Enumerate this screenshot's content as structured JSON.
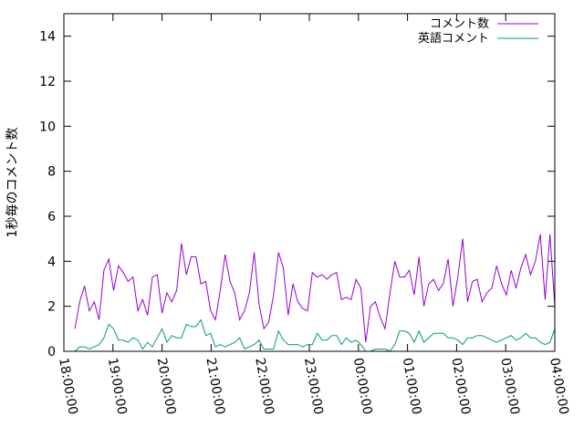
{
  "chart_data": {
    "type": "line",
    "title": "",
    "xlabel": "",
    "ylabel": "1秒毎のコメント数",
    "ylim": [
      0,
      15
    ],
    "yticks": [
      0,
      2,
      4,
      6,
      8,
      10,
      12,
      14
    ],
    "xlim": [
      "18:00:00",
      "04:00:00"
    ],
    "xticks": [
      "18:00:00",
      "19:00:00",
      "20:00:00",
      "21:00:00",
      "22:00:00",
      "23:00:00",
      "00:00:00",
      "01:00:00",
      "02:00:00",
      "03:00:00",
      "04:00:00"
    ],
    "grid": false,
    "legend_position": "top-right",
    "series": [
      {
        "name": "コメント数",
        "color": "#9400d3",
        "values": [
          1.0,
          2.2,
          2.9,
          1.8,
          2.2,
          1.4,
          3.6,
          4.1,
          2.7,
          3.8,
          3.5,
          3.1,
          3.3,
          1.8,
          2.3,
          1.6,
          3.3,
          3.4,
          1.7,
          2.6,
          2.2,
          2.7,
          4.8,
          3.4,
          4.2,
          4.2,
          3.0,
          3.1,
          1.8,
          1.4,
          2.7,
          4.3,
          3.1,
          2.6,
          1.4,
          1.8,
          2.6,
          4.4,
          2.1,
          1.0,
          1.3,
          2.5,
          4.4,
          3.7,
          1.6,
          3.0,
          2.2,
          1.9,
          1.8,
          3.5,
          3.3,
          3.4,
          3.2,
          3.4,
          3.5,
          2.3,
          2.4,
          2.3,
          3.2,
          2.8,
          0.4,
          2.0,
          2.2,
          1.5,
          1.0,
          2.6,
          4.0,
          3.3,
          3.3,
          3.6,
          2.5,
          4.2,
          2.0,
          3.0,
          3.2,
          2.7,
          3.0,
          4.1,
          2.0,
          3.3,
          5.0,
          2.2,
          3.1,
          3.2,
          2.2,
          2.6,
          2.8,
          3.8,
          3.0,
          2.5,
          3.6,
          2.8,
          3.7,
          4.3,
          3.4,
          4.0,
          5.2,
          2.3,
          5.2,
          2.0
        ]
      },
      {
        "name": "英語コメント",
        "color": "#009e73",
        "values": [
          0.0,
          0.2,
          0.2,
          0.1,
          0.2,
          0.3,
          0.6,
          1.2,
          1.0,
          0.5,
          0.5,
          0.4,
          0.6,
          0.5,
          0.1,
          0.4,
          0.2,
          0.6,
          1.0,
          0.4,
          0.7,
          0.6,
          0.6,
          1.2,
          1.1,
          1.1,
          1.4,
          0.7,
          0.8,
          0.2,
          0.3,
          0.2,
          0.3,
          0.4,
          0.6,
          0.1,
          0.2,
          0.3,
          0.5,
          0.1,
          0.1,
          0.1,
          0.9,
          0.5,
          0.3,
          0.3,
          0.3,
          0.2,
          0.3,
          0.3,
          0.8,
          0.5,
          0.5,
          0.7,
          0.7,
          0.3,
          0.6,
          0.4,
          0.5,
          0.3,
          0.0,
          0.0,
          0.1,
          0.1,
          0.1,
          0.0,
          0.3,
          0.9,
          0.9,
          0.8,
          0.4,
          0.9,
          0.4,
          0.6,
          0.8,
          0.8,
          0.8,
          0.6,
          0.6,
          0.5,
          0.3,
          0.6,
          0.6,
          0.7,
          0.7,
          0.6,
          0.5,
          0.4,
          0.5,
          0.6,
          0.7,
          0.5,
          0.6,
          0.8,
          0.6,
          0.6,
          0.4,
          0.3,
          0.4,
          1.0
        ]
      }
    ]
  }
}
